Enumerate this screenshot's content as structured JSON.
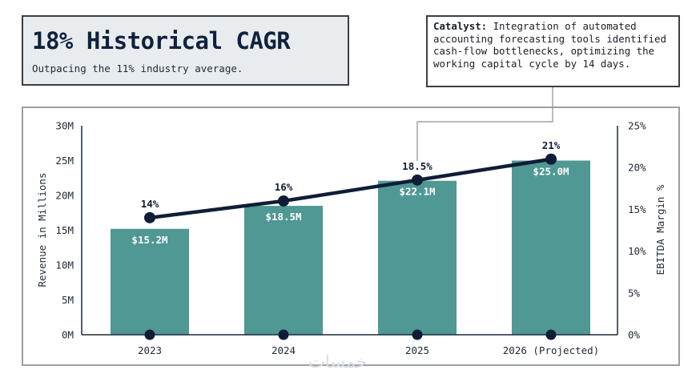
{
  "headline": {
    "title": "18% Historical CAGR",
    "subtitle": "Outpacing the 11% industry average."
  },
  "catalyst": {
    "label": "Catalyst:",
    "text": " Integration of automated accounting forecasting tools identified cash-flow bottlenecks, optimizing the working capital cycle by 14 days."
  },
  "watermark": "خمسات",
  "colors": {
    "bar": "#4f9893",
    "line": "#0f1e36",
    "axis": "#1e2a38",
    "connector": "#8a9096"
  },
  "chart_data": {
    "type": "bar",
    "title": "",
    "categories": [
      "2023",
      "2024",
      "2025",
      "2026 (Projected)"
    ],
    "series": [
      {
        "name": "Revenue",
        "type": "bar",
        "axis": "left",
        "values": [
          15.2,
          18.5,
          22.1,
          25.0
        ],
        "labels": [
          "$15.2M",
          "$18.5M",
          "$22.1M",
          "$25.0M"
        ]
      },
      {
        "name": "EBITDA Margin",
        "type": "line",
        "axis": "right",
        "values": [
          14,
          16,
          18.5,
          21
        ],
        "labels": [
          "14%",
          "16%",
          "18.5%",
          "21%"
        ]
      }
    ],
    "ylabel": "Revenue in Millions",
    "y2label": "EBITDA Margin %",
    "ylim": [
      0,
      30
    ],
    "y2lim": [
      0,
      25
    ],
    "yticks": [
      "0M",
      "5M",
      "10M",
      "15M",
      "20M",
      "25M",
      "30M"
    ],
    "y2ticks": [
      "0%",
      "5%",
      "10%",
      "15%",
      "20%",
      "25%"
    ],
    "grid": false,
    "annotation": {
      "target_category": "2025",
      "target_series": "EBITDA Margin",
      "text_ref": "catalyst"
    }
  }
}
